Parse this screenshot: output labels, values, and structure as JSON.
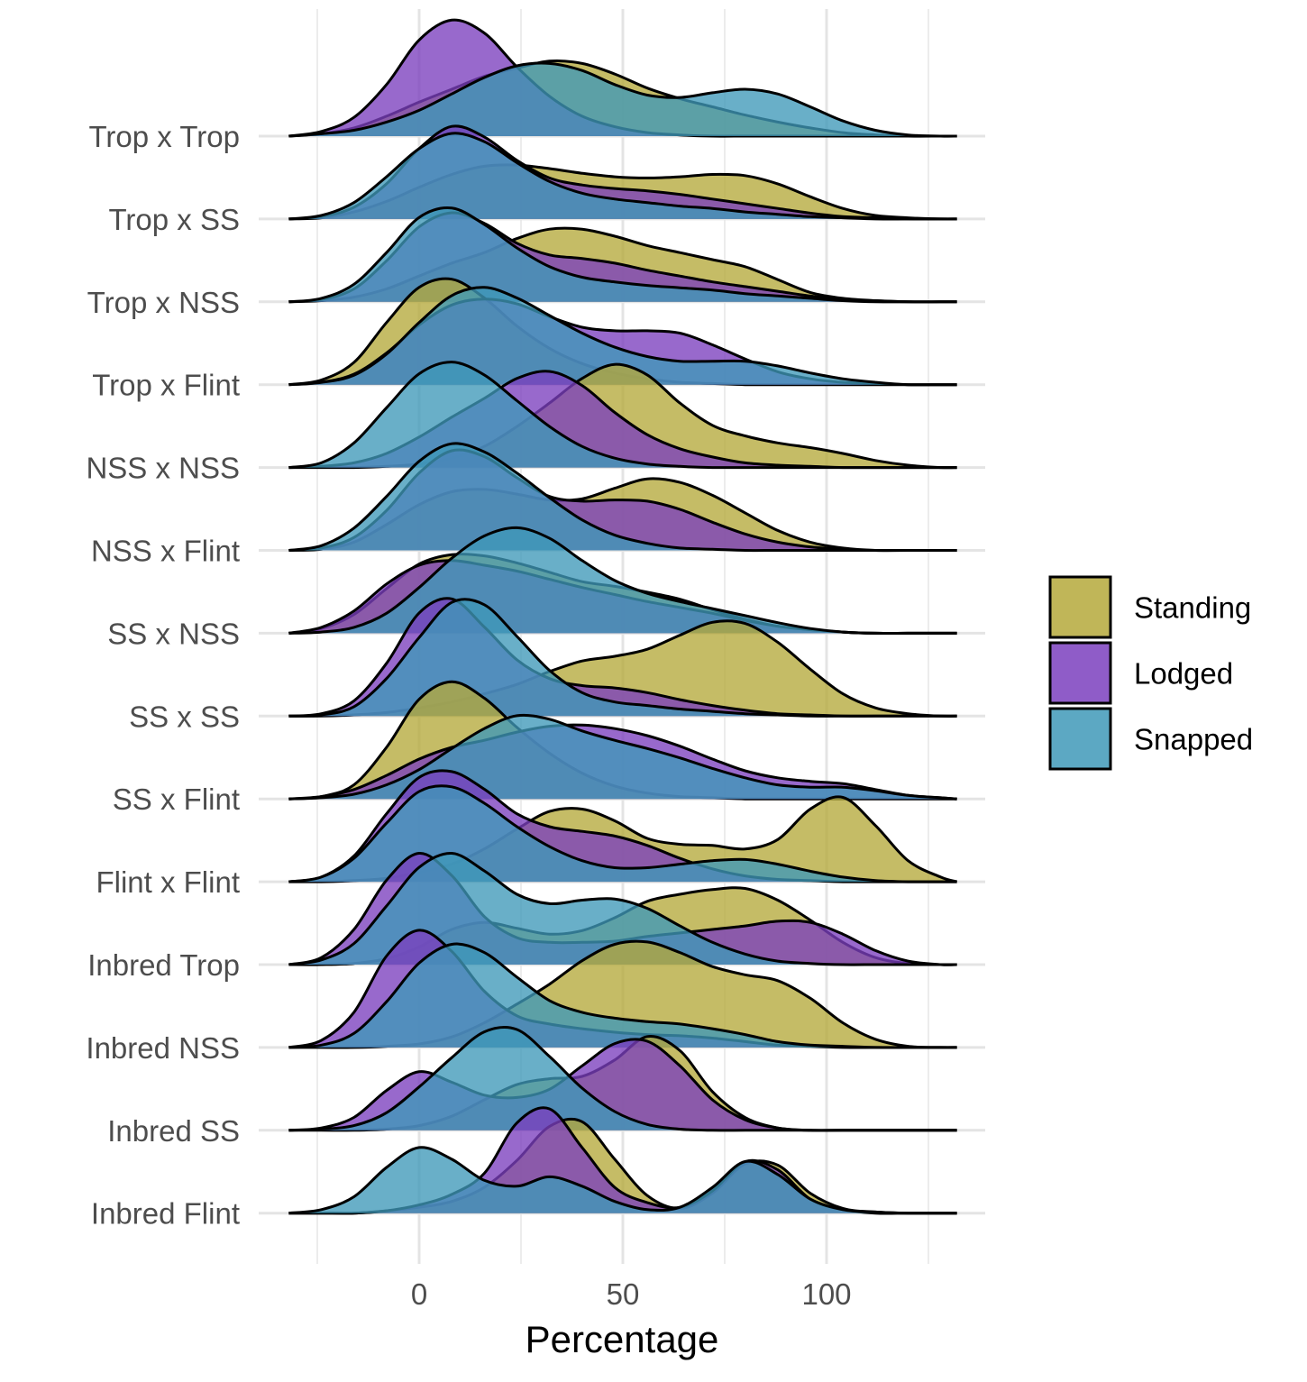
{
  "chart_data": {
    "type": "ridgeline",
    "xlabel": "Percentage",
    "ylabel": "",
    "title": "",
    "x_ticks": [
      0,
      50,
      100
    ],
    "xlim": [
      -32,
      132
    ],
    "grid": true,
    "legend_position": "right",
    "series": [
      {
        "name": "Standing",
        "color": "#b5a93b"
      },
      {
        "name": "Lodged",
        "color": "#7b3fbe"
      },
      {
        "name": "Snapped",
        "color": "#3f99b8"
      }
    ],
    "categories": [
      "Trop x Trop",
      "Trop x SS",
      "Trop x NSS",
      "Trop x Flint",
      "NSS x NSS",
      "NSS x Flint",
      "SS x NSS",
      "SS x SS",
      "SS x Flint",
      "Flint x Flint",
      "Inbred Trop",
      "Inbred NSS",
      "Inbred SS",
      "Inbred Flint"
    ],
    "density_grid": [
      -32,
      -24,
      -16,
      -8,
      0,
      8,
      16,
      24,
      32,
      40,
      48,
      56,
      64,
      72,
      80,
      88,
      96,
      104,
      112,
      120,
      128,
      132
    ],
    "ridges": [
      {
        "label": "Trop x Trop",
        "Standing": [
          0,
          0.02,
          0.07,
          0.17,
          0.29,
          0.4,
          0.51,
          0.58,
          0.64,
          0.62,
          0.53,
          0.41,
          0.32,
          0.25,
          0.18,
          0.12,
          0.07,
          0.03,
          0.01,
          0,
          0,
          0
        ],
        "Lodged": [
          0,
          0.04,
          0.16,
          0.44,
          0.82,
          0.99,
          0.88,
          0.59,
          0.34,
          0.17,
          0.08,
          0.03,
          0.01,
          0,
          0,
          0,
          0,
          0,
          0,
          0,
          0,
          0
        ],
        "Snapped": [
          0,
          0.02,
          0.05,
          0.12,
          0.22,
          0.36,
          0.5,
          0.6,
          0.62,
          0.56,
          0.44,
          0.35,
          0.33,
          0.37,
          0.4,
          0.36,
          0.25,
          0.13,
          0.05,
          0.01,
          0,
          0
        ]
      },
      {
        "label": "Trop x SS",
        "Standing": [
          0,
          0.01,
          0.06,
          0.15,
          0.27,
          0.38,
          0.45,
          0.46,
          0.43,
          0.39,
          0.36,
          0.35,
          0.36,
          0.38,
          0.37,
          0.3,
          0.19,
          0.09,
          0.03,
          0.01,
          0,
          0
        ],
        "Lodged": [
          0,
          0.02,
          0.1,
          0.3,
          0.6,
          0.79,
          0.7,
          0.5,
          0.35,
          0.29,
          0.26,
          0.24,
          0.21,
          0.17,
          0.13,
          0.09,
          0.05,
          0.02,
          0.01,
          0,
          0,
          0
        ],
        "Snapped": [
          0,
          0.03,
          0.14,
          0.36,
          0.6,
          0.73,
          0.66,
          0.48,
          0.32,
          0.22,
          0.17,
          0.14,
          0.11,
          0.09,
          0.06,
          0.04,
          0.02,
          0.01,
          0,
          0,
          0,
          0
        ]
      },
      {
        "label": "Trop x NSS",
        "Standing": [
          0,
          0.01,
          0.04,
          0.11,
          0.22,
          0.33,
          0.42,
          0.54,
          0.62,
          0.62,
          0.56,
          0.48,
          0.42,
          0.36,
          0.3,
          0.19,
          0.08,
          0.03,
          0.01,
          0,
          0,
          0
        ],
        "Lodged": [
          0,
          0.02,
          0.11,
          0.35,
          0.64,
          0.76,
          0.67,
          0.5,
          0.4,
          0.37,
          0.33,
          0.27,
          0.22,
          0.17,
          0.13,
          0.09,
          0.05,
          0.02,
          0.01,
          0,
          0,
          0
        ],
        "Snapped": [
          0,
          0.03,
          0.15,
          0.42,
          0.72,
          0.8,
          0.66,
          0.46,
          0.3,
          0.21,
          0.17,
          0.14,
          0.12,
          0.1,
          0.07,
          0.05,
          0.03,
          0.01,
          0,
          0,
          0,
          0
        ]
      },
      {
        "label": "Trop x Flint",
        "Standing": [
          0,
          0.04,
          0.19,
          0.53,
          0.83,
          0.9,
          0.74,
          0.5,
          0.31,
          0.18,
          0.1,
          0.05,
          0.02,
          0.01,
          0,
          0,
          0,
          0,
          0,
          0,
          0,
          0
        ],
        "Lodged": [
          0,
          0.02,
          0.09,
          0.27,
          0.51,
          0.68,
          0.73,
          0.69,
          0.58,
          0.49,
          0.46,
          0.46,
          0.44,
          0.34,
          0.22,
          0.11,
          0.05,
          0.02,
          0.01,
          0,
          0,
          0
        ],
        "Snapped": [
          0,
          0.02,
          0.08,
          0.26,
          0.53,
          0.76,
          0.83,
          0.74,
          0.59,
          0.44,
          0.32,
          0.24,
          0.2,
          0.2,
          0.2,
          0.16,
          0.1,
          0.05,
          0.02,
          0,
          0,
          0
        ]
      },
      {
        "label": "NSS x NSS",
        "Standing": [
          0,
          0,
          0,
          0.01,
          0.03,
          0.08,
          0.18,
          0.35,
          0.55,
          0.76,
          0.88,
          0.79,
          0.55,
          0.36,
          0.27,
          0.21,
          0.17,
          0.12,
          0.06,
          0.02,
          0,
          0
        ],
        "Lodged": [
          0,
          0.01,
          0.04,
          0.12,
          0.26,
          0.43,
          0.59,
          0.76,
          0.82,
          0.7,
          0.47,
          0.28,
          0.16,
          0.09,
          0.04,
          0.02,
          0.01,
          0,
          0,
          0,
          0,
          0
        ],
        "Snapped": [
          0,
          0.04,
          0.21,
          0.51,
          0.8,
          0.9,
          0.79,
          0.57,
          0.35,
          0.18,
          0.08,
          0.03,
          0.01,
          0,
          0,
          0,
          0,
          0,
          0,
          0,
          0,
          0
        ]
      },
      {
        "label": "NSS x Flint",
        "Standing": [
          0,
          0.01,
          0.07,
          0.22,
          0.39,
          0.5,
          0.52,
          0.48,
          0.43,
          0.44,
          0.53,
          0.61,
          0.58,
          0.47,
          0.32,
          0.17,
          0.07,
          0.02,
          0,
          0,
          0,
          0
        ],
        "Lodged": [
          0,
          0.02,
          0.11,
          0.34,
          0.66,
          0.85,
          0.8,
          0.62,
          0.46,
          0.42,
          0.43,
          0.42,
          0.35,
          0.24,
          0.14,
          0.07,
          0.03,
          0.01,
          0,
          0,
          0,
          0
        ],
        "Snapped": [
          0,
          0.04,
          0.19,
          0.46,
          0.76,
          0.91,
          0.84,
          0.66,
          0.45,
          0.26,
          0.13,
          0.06,
          0.02,
          0.01,
          0,
          0,
          0,
          0,
          0,
          0,
          0,
          0
        ]
      },
      {
        "label": "SS x NSS",
        "Standing": [
          0,
          0.04,
          0.16,
          0.38,
          0.59,
          0.67,
          0.66,
          0.6,
          0.52,
          0.44,
          0.4,
          0.35,
          0.29,
          0.2,
          0.12,
          0.06,
          0.03,
          0.01,
          0,
          0,
          0,
          0
        ],
        "Lodged": [
          0,
          0.05,
          0.19,
          0.42,
          0.58,
          0.62,
          0.58,
          0.53,
          0.46,
          0.39,
          0.33,
          0.27,
          0.22,
          0.17,
          0.11,
          0.06,
          0.03,
          0.01,
          0,
          0,
          0,
          0
        ],
        "Snapped": [
          0,
          0.01,
          0.05,
          0.17,
          0.39,
          0.64,
          0.83,
          0.9,
          0.81,
          0.62,
          0.45,
          0.34,
          0.27,
          0.21,
          0.15,
          0.09,
          0.04,
          0.01,
          0,
          0,
          0,
          0
        ]
      },
      {
        "label": "SS x SS",
        "Standing": [
          0,
          0,
          0.01,
          0.03,
          0.07,
          0.12,
          0.19,
          0.27,
          0.38,
          0.47,
          0.51,
          0.57,
          0.69,
          0.8,
          0.79,
          0.63,
          0.4,
          0.19,
          0.07,
          0.02,
          0,
          0
        ],
        "Lodged": [
          0,
          0.02,
          0.13,
          0.45,
          0.88,
          1.0,
          0.76,
          0.48,
          0.32,
          0.26,
          0.24,
          0.2,
          0.14,
          0.09,
          0.05,
          0.02,
          0.01,
          0,
          0,
          0,
          0,
          0
        ],
        "Snapped": [
          0,
          0.01,
          0.08,
          0.32,
          0.67,
          0.97,
          0.95,
          0.68,
          0.39,
          0.2,
          0.12,
          0.09,
          0.06,
          0.04,
          0.02,
          0.01,
          0,
          0,
          0,
          0,
          0,
          0
        ]
      },
      {
        "label": "SS x Flint",
        "Standing": [
          0,
          0.02,
          0.12,
          0.44,
          0.85,
          1.0,
          0.86,
          0.61,
          0.39,
          0.22,
          0.11,
          0.05,
          0.02,
          0.01,
          0,
          0,
          0,
          0,
          0,
          0,
          0,
          0
        ],
        "Lodged": [
          0,
          0.02,
          0.08,
          0.2,
          0.34,
          0.44,
          0.5,
          0.57,
          0.62,
          0.63,
          0.6,
          0.54,
          0.45,
          0.34,
          0.24,
          0.18,
          0.15,
          0.13,
          0.08,
          0.03,
          0.01,
          0
        ],
        "Snapped": [
          0,
          0.01,
          0.04,
          0.12,
          0.25,
          0.43,
          0.6,
          0.71,
          0.68,
          0.58,
          0.5,
          0.43,
          0.35,
          0.26,
          0.18,
          0.12,
          0.1,
          0.1,
          0.07,
          0.03,
          0.01,
          0
        ]
      },
      {
        "label": "Flint x Flint",
        "Standing": [
          0,
          0,
          0.01,
          0.03,
          0.08,
          0.15,
          0.28,
          0.45,
          0.6,
          0.62,
          0.52,
          0.37,
          0.32,
          0.31,
          0.28,
          0.36,
          0.62,
          0.72,
          0.48,
          0.18,
          0.04,
          0
        ],
        "Lodged": [
          0,
          0.04,
          0.22,
          0.58,
          0.89,
          0.94,
          0.79,
          0.58,
          0.47,
          0.43,
          0.39,
          0.31,
          0.2,
          0.11,
          0.05,
          0.02,
          0.01,
          0,
          0,
          0,
          0,
          0
        ],
        "Snapped": [
          0,
          0.04,
          0.2,
          0.5,
          0.77,
          0.81,
          0.67,
          0.47,
          0.3,
          0.18,
          0.12,
          0.12,
          0.15,
          0.18,
          0.19,
          0.15,
          0.09,
          0.04,
          0.01,
          0,
          0,
          0
        ]
      },
      {
        "label": "Inbred Trop",
        "Standing": [
          0,
          0,
          0.01,
          0.05,
          0.15,
          0.3,
          0.36,
          0.31,
          0.26,
          0.29,
          0.4,
          0.54,
          0.6,
          0.64,
          0.65,
          0.55,
          0.38,
          0.19,
          0.06,
          0.01,
          0,
          0
        ],
        "Lodged": [
          0,
          0.06,
          0.3,
          0.72,
          0.95,
          0.76,
          0.41,
          0.23,
          0.19,
          0.19,
          0.2,
          0.24,
          0.27,
          0.3,
          0.33,
          0.37,
          0.36,
          0.26,
          0.12,
          0.03,
          0,
          0
        ],
        "Snapped": [
          0,
          0.04,
          0.18,
          0.5,
          0.83,
          0.95,
          0.8,
          0.6,
          0.52,
          0.55,
          0.56,
          0.48,
          0.33,
          0.19,
          0.09,
          0.03,
          0.01,
          0,
          0,
          0,
          0,
          0
        ]
      },
      {
        "label": "Inbred NSS",
        "Standing": [
          0,
          0,
          0,
          0.01,
          0.03,
          0.09,
          0.21,
          0.37,
          0.54,
          0.74,
          0.88,
          0.9,
          0.81,
          0.69,
          0.62,
          0.57,
          0.42,
          0.21,
          0.07,
          0.01,
          0,
          0
        ],
        "Lodged": [
          0,
          0.06,
          0.3,
          0.78,
          1.0,
          0.82,
          0.48,
          0.27,
          0.2,
          0.16,
          0.13,
          0.11,
          0.1,
          0.08,
          0.05,
          0.02,
          0.01,
          0,
          0,
          0,
          0,
          0
        ],
        "Snapped": [
          0,
          0.02,
          0.12,
          0.39,
          0.72,
          0.88,
          0.81,
          0.6,
          0.4,
          0.3,
          0.25,
          0.22,
          0.2,
          0.16,
          0.11,
          0.05,
          0.02,
          0.01,
          0,
          0,
          0,
          0
        ]
      },
      {
        "label": "Inbred SS",
        "Standing": [
          0,
          0,
          0,
          0.01,
          0.04,
          0.12,
          0.26,
          0.39,
          0.44,
          0.46,
          0.6,
          0.8,
          0.68,
          0.33,
          0.11,
          0.02,
          0,
          0,
          0,
          0,
          0,
          0
        ],
        "Lodged": [
          0,
          0.02,
          0.11,
          0.34,
          0.5,
          0.41,
          0.3,
          0.28,
          0.35,
          0.55,
          0.74,
          0.76,
          0.55,
          0.26,
          0.09,
          0.02,
          0,
          0,
          0,
          0,
          0,
          0
        ],
        "Snapped": [
          0,
          0.01,
          0.04,
          0.15,
          0.37,
          0.62,
          0.84,
          0.86,
          0.63,
          0.36,
          0.16,
          0.05,
          0.01,
          0,
          0,
          0,
          0,
          0,
          0,
          0,
          0,
          0
        ]
      },
      {
        "label": "Inbred Flint",
        "Standing": [
          0,
          0,
          0,
          0.02,
          0.05,
          0.1,
          0.22,
          0.45,
          0.74,
          0.78,
          0.46,
          0.15,
          0.04,
          0.17,
          0.42,
          0.41,
          0.17,
          0.04,
          0.01,
          0,
          0,
          0
        ],
        "Lodged": [
          0,
          0,
          0,
          0.02,
          0.07,
          0.16,
          0.34,
          0.77,
          0.89,
          0.56,
          0.22,
          0.09,
          0.05,
          0.19,
          0.44,
          0.37,
          0.12,
          0.03,
          0,
          0,
          0,
          0
        ],
        "Snapped": [
          0,
          0.03,
          0.14,
          0.39,
          0.56,
          0.46,
          0.28,
          0.23,
          0.31,
          0.23,
          0.1,
          0.03,
          0.05,
          0.22,
          0.44,
          0.33,
          0.12,
          0.03,
          0.01,
          0,
          0,
          0
        ]
      }
    ]
  }
}
